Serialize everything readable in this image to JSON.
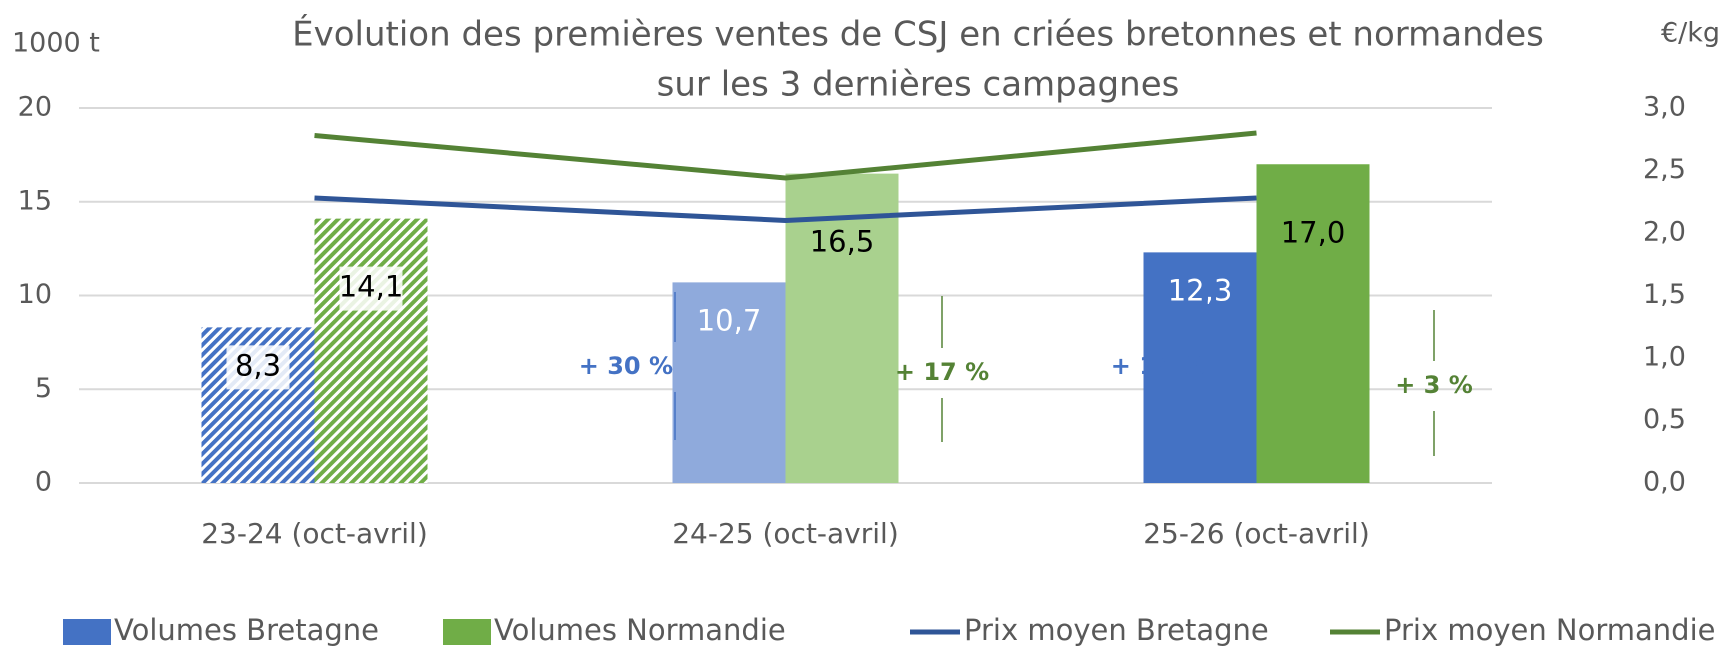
{
  "chart_data": {
    "type": "bar",
    "title": "Évolution des premières ventes de CSJ en criées bretonnes et normandes",
    "subtitle": "sur les 3 dernières campagnes",
    "y_label": "1000 t",
    "y2_label": "€/kg",
    "categories": [
      "23-24 (oct-avril)",
      "24-25 (oct-avril)",
      "25-26 (oct-avril)"
    ],
    "patterns": [
      "hatch",
      "solid",
      "solid"
    ],
    "series": [
      {
        "name": "Volumes Bretagne",
        "type": "bar",
        "color": "#4472c4",
        "colors": [
          "#4472c4",
          "#8faadc",
          "#4472c4"
        ],
        "label_color": "#ffffff",
        "values": [
          8.3,
          10.7,
          12.3
        ],
        "value_labels": [
          "8,3",
          "10,7",
          "12,3"
        ]
      },
      {
        "name": "Volumes Normandie",
        "type": "bar",
        "color": "#70ad47",
        "colors": [
          "#70ad47",
          "#a9d18e",
          "#70ad47"
        ],
        "label_color": "#000000",
        "values": [
          14.1,
          16.5,
          17.0
        ],
        "value_labels": [
          "14,1",
          "16,5",
          "17,0"
        ]
      },
      {
        "name": "Prix moyen Bretagne",
        "type": "line",
        "axis": "y2",
        "color": "#2f5597",
        "values": [
          2.28,
          2.1,
          2.28
        ]
      },
      {
        "name": "Prix moyen Normandie",
        "type": "line",
        "axis": "y2",
        "color": "#548235",
        "values": [
          2.78,
          2.44,
          2.8
        ]
      }
    ],
    "annotations": [
      {
        "text": "+ 30 %",
        "color": "#4472c4"
      },
      {
        "text": "+ 17 %",
        "color": "#548235"
      },
      {
        "text": "+ 14 %",
        "color": "#4472c4"
      },
      {
        "text": "+ 3 %",
        "color": "#548235"
      }
    ],
    "ylim": [
      0,
      20
    ],
    "yticks": [
      0,
      5,
      10,
      15,
      20
    ],
    "y2lim": [
      0,
      3
    ],
    "y2ticks": [
      {
        "value": 0,
        "label": "0,0"
      },
      {
        "value": 0.5,
        "label": "0,5"
      },
      {
        "value": 1,
        "label": "1,0"
      },
      {
        "value": 1.5,
        "label": "1,5"
      },
      {
        "value": 2,
        "label": "2,0"
      },
      {
        "value": 2.5,
        "label": "2,5"
      },
      {
        "value": 3,
        "label": "3,0"
      }
    ],
    "grid": true,
    "legend": "bottom"
  }
}
